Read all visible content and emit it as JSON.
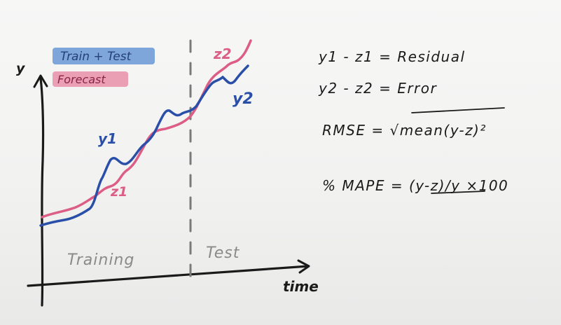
{
  "legend": {
    "train_test": "Train + Test",
    "forecast": "Forecast",
    "train_test_color": "#6a98d6",
    "forecast_color": "#e98fa8"
  },
  "axes": {
    "y_label": "y",
    "x_label": "time"
  },
  "regions": {
    "training": "Training",
    "test": "Test"
  },
  "series_labels": {
    "y1": "y1",
    "z1": "z1",
    "z2": "z2",
    "y2": "y2"
  },
  "colors": {
    "actual": "#2a4fa8",
    "forecast": "#dc5d86",
    "ink": "#1a1a1a",
    "divider": "#7a7a7a",
    "region_text": "#8a8a8a"
  },
  "formulas": {
    "residual": "y1 - z1 = Residual",
    "error": "y2 - z2 = Error",
    "rmse": "RMSE = √mean(y-z)²",
    "mape": "% MAPE = (y-z)/y ×100"
  }
}
